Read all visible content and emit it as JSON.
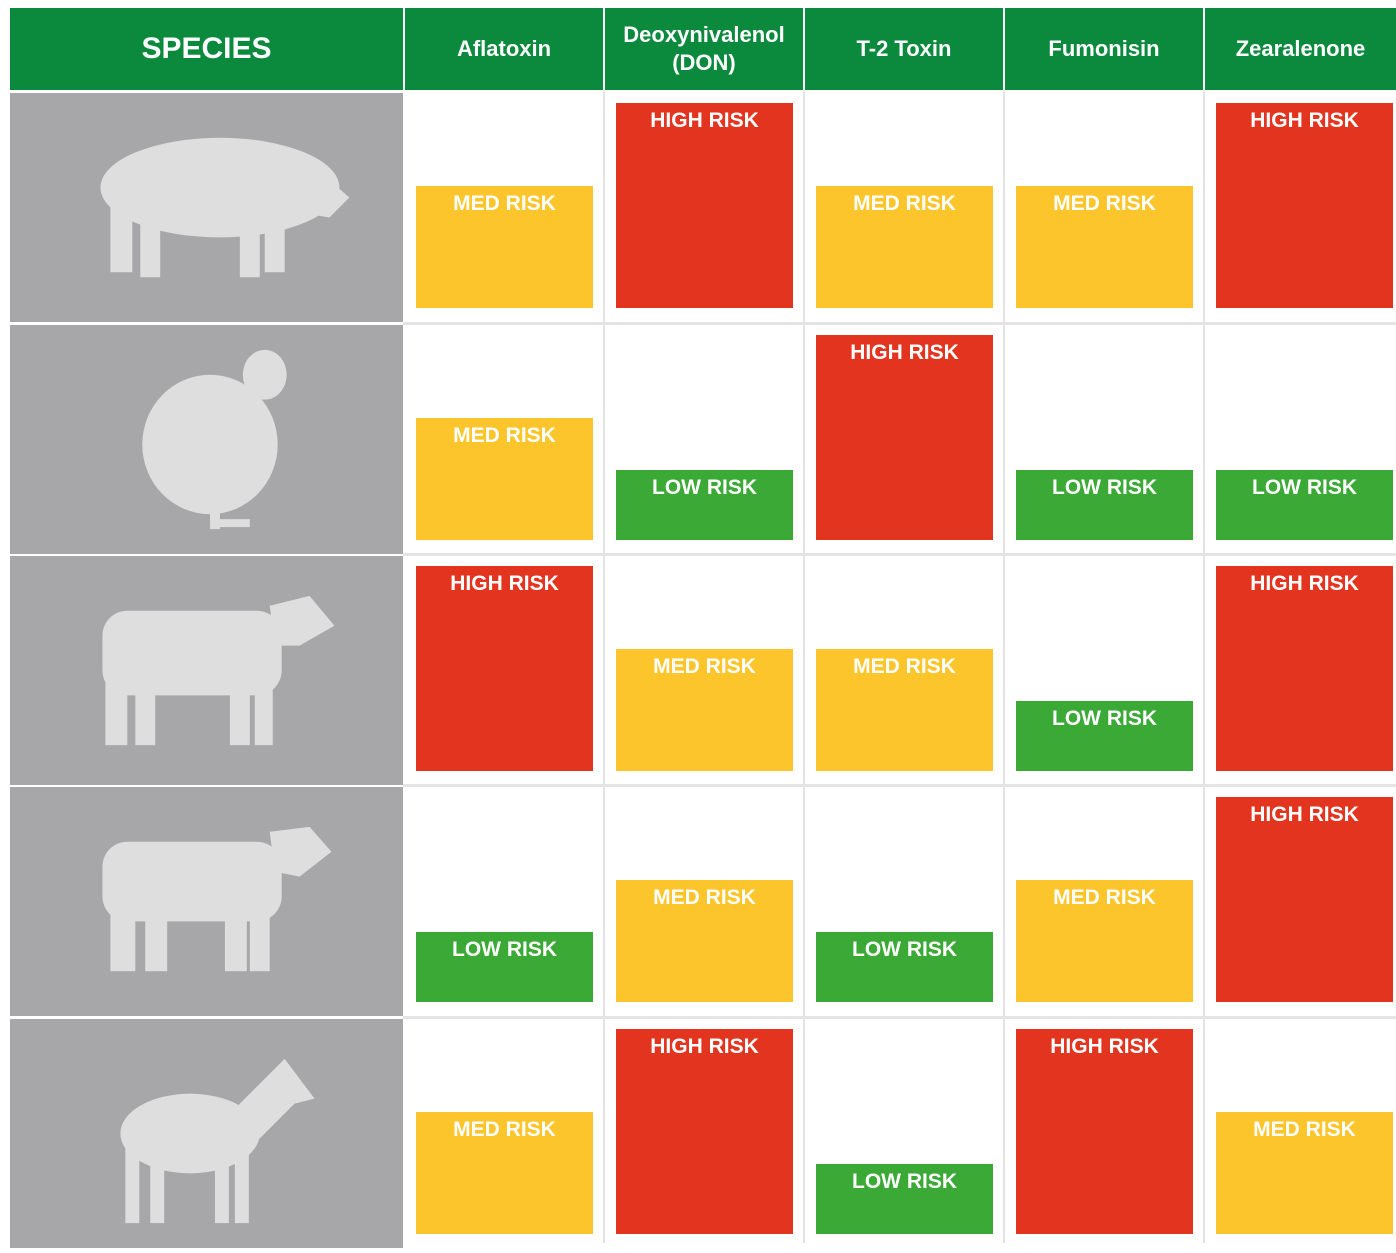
{
  "table": {
    "header": [
      "SPECIES",
      "Aflatoxin",
      "Deoxynivalenol (DON)",
      "T-2 Toxin",
      "Fumonisin",
      "Zearalenone"
    ],
    "risk_levels": [
      {
        "label": "LOW RISK",
        "color": "#3aa935"
      },
      {
        "label": "MED RISK",
        "color": "#fcc52c"
      },
      {
        "label": "HIGH RISK",
        "color": "#e2341f"
      }
    ],
    "rows": [
      [
        "MED RISK",
        "HIGH RISK",
        "MED RISK",
        "MED RISK",
        "HIGH RISK"
      ],
      [
        "MED RISK",
        "LOW RISK",
        "HIGH RISK",
        "LOW RISK",
        "LOW RISK"
      ],
      [
        "HIGH RISK",
        "MED RISK",
        "MED RISK",
        "LOW RISK",
        "HIGH RISK"
      ],
      [
        "LOW RISK",
        "MED RISK",
        "LOW RISK",
        "MED RISK",
        "HIGH RISK"
      ],
      [
        "MED RISK",
        "HIGH RISK",
        "LOW RISK",
        "HIGH RISK",
        "MED RISK"
      ]
    ]
  }
}
